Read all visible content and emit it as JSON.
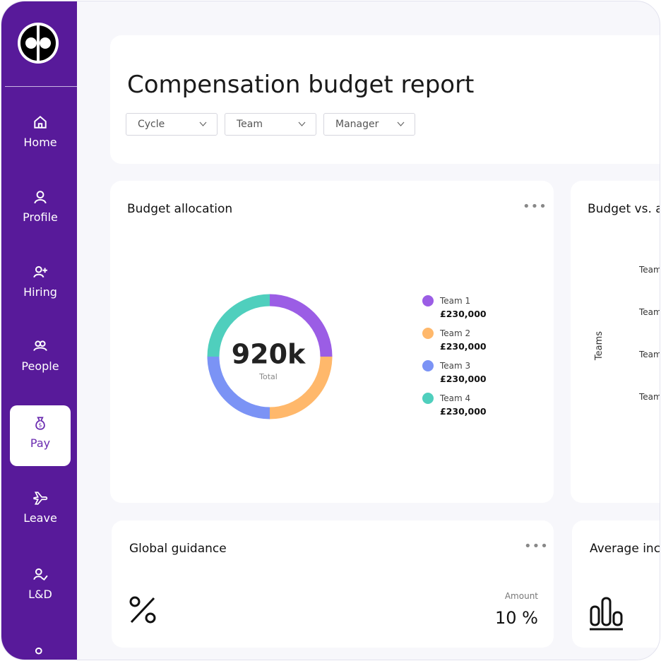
{
  "sidebar": {
    "items": [
      "Home",
      "Profile",
      "Hiring",
      "People",
      "Pay",
      "Leave",
      "L&D"
    ],
    "active": "Pay"
  },
  "header": {
    "title": "Compensation budget report",
    "filters": [
      "Cycle",
      "Team",
      "Manager"
    ]
  },
  "chart_data": {
    "type": "donut",
    "title": "Budget allocation",
    "center_value": "920k",
    "center_label": "Total",
    "categories": [
      "Team 1",
      "Team 2",
      "Team 3",
      "Team 4"
    ],
    "values": [
      230000,
      230000,
      230000,
      230000
    ],
    "value_labels": [
      "£230,000",
      "£230,000",
      "£230,000",
      "£230,000"
    ],
    "colors": [
      "#9b5de5",
      "#ffb86b",
      "#7b93f5",
      "#4fcfbd"
    ]
  },
  "budget_card": {
    "title": "Budget vs. a",
    "axis_label": "Teams",
    "rows": [
      "Team",
      "Team",
      "Team",
      "Team"
    ]
  },
  "guidance_card": {
    "title": "Global guidance",
    "amount_label": "Amount",
    "amount": "10 %"
  },
  "average_card": {
    "title": "Average inc"
  }
}
